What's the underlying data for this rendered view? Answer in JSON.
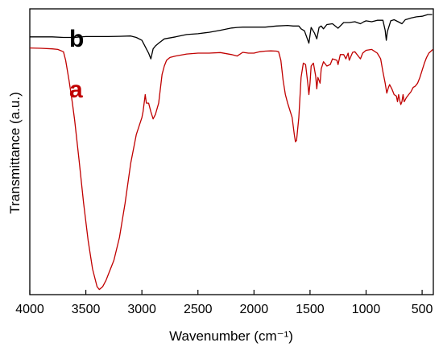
{
  "chart_data": {
    "type": "line",
    "title": "",
    "xlabel": "Wavenumber (cm⁻¹)",
    "ylabel": "Transmittance (a.u.)",
    "xlim": [
      4000,
      400
    ],
    "x_reversed": true,
    "ylim": [
      0,
      100
    ],
    "y_tick_labels_shown": false,
    "grid": false,
    "legend": "inline labels",
    "x_ticks": [
      4000,
      3500,
      3000,
      2500,
      2000,
      1500,
      1000,
      500
    ],
    "x_tick_labels": [
      "4000",
      "3500",
      "3000",
      "2500",
      "2000",
      "1500",
      "1000",
      "500"
    ],
    "series": [
      {
        "name": "b",
        "color": "#000000",
        "points": [
          [
            4000,
            90.2
          ],
          [
            3800,
            90.2
          ],
          [
            3700,
            90.0
          ],
          [
            3600,
            90.0
          ],
          [
            3500,
            90.3
          ],
          [
            3400,
            90.3
          ],
          [
            3300,
            90.3
          ],
          [
            3200,
            90.4
          ],
          [
            3100,
            90.5
          ],
          [
            3050,
            90.0
          ],
          [
            3000,
            89.0
          ],
          [
            2960,
            86.0
          ],
          [
            2940,
            84.5
          ],
          [
            2920,
            82.5
          ],
          [
            2900,
            86.0
          ],
          [
            2880,
            87.0
          ],
          [
            2850,
            88.0
          ],
          [
            2800,
            89.5
          ],
          [
            2700,
            90.2
          ],
          [
            2600,
            91.0
          ],
          [
            2500,
            91.3
          ],
          [
            2400,
            91.8
          ],
          [
            2300,
            92.5
          ],
          [
            2200,
            93.3
          ],
          [
            2150,
            93.5
          ],
          [
            2100,
            93.6
          ],
          [
            2000,
            93.6
          ],
          [
            1900,
            93.6
          ],
          [
            1800,
            94.0
          ],
          [
            1700,
            94.2
          ],
          [
            1650,
            94.0
          ],
          [
            1600,
            94.0
          ],
          [
            1580,
            93.0
          ],
          [
            1550,
            92.3
          ],
          [
            1510,
            88.0
          ],
          [
            1490,
            93.5
          ],
          [
            1460,
            91.5
          ],
          [
            1440,
            89.5
          ],
          [
            1420,
            93.5
          ],
          [
            1400,
            94.0
          ],
          [
            1380,
            93.0
          ],
          [
            1350,
            94.5
          ],
          [
            1300,
            94.8
          ],
          [
            1250,
            93.2
          ],
          [
            1200,
            95.2
          ],
          [
            1150,
            95.2
          ],
          [
            1100,
            95.5
          ],
          [
            1050,
            94.8
          ],
          [
            1020,
            95.5
          ],
          [
            1000,
            95.8
          ],
          [
            950,
            95.5
          ],
          [
            900,
            96.0
          ],
          [
            850,
            96.0
          ],
          [
            830,
            92.5
          ],
          [
            820,
            89.0
          ],
          [
            810,
            92.0
          ],
          [
            780,
            95.8
          ],
          [
            750,
            96.2
          ],
          [
            700,
            95.2
          ],
          [
            680,
            94.8
          ],
          [
            650,
            96.2
          ],
          [
            600,
            96.8
          ],
          [
            550,
            97.2
          ],
          [
            500,
            97.4
          ],
          [
            450,
            98.0
          ],
          [
            410,
            98.0
          ]
        ]
      },
      {
        "name": "a",
        "color": "#c00000",
        "points": [
          [
            4000,
            86.3
          ],
          [
            3900,
            86.2
          ],
          [
            3800,
            86.0
          ],
          [
            3750,
            85.8
          ],
          [
            3700,
            85.0
          ],
          [
            3680,
            82.0
          ],
          [
            3650,
            75.0
          ],
          [
            3620,
            67.0
          ],
          [
            3600,
            61.0
          ],
          [
            3560,
            47.0
          ],
          [
            3520,
            32.0
          ],
          [
            3480,
            19.0
          ],
          [
            3440,
            9.0
          ],
          [
            3400,
            2.8
          ],
          [
            3380,
            1.8
          ],
          [
            3350,
            2.8
          ],
          [
            3320,
            5.0
          ],
          [
            3300,
            7.0
          ],
          [
            3250,
            12.0
          ],
          [
            3200,
            20.0
          ],
          [
            3150,
            32.0
          ],
          [
            3100,
            46.0
          ],
          [
            3050,
            56.0
          ],
          [
            3000,
            62.0
          ],
          [
            2990,
            64.0
          ],
          [
            2970,
            70.0
          ],
          [
            2960,
            67.0
          ],
          [
            2940,
            67.0
          ],
          [
            2920,
            64.0
          ],
          [
            2900,
            61.5
          ],
          [
            2880,
            63.0
          ],
          [
            2850,
            67.0
          ],
          [
            2820,
            77.0
          ],
          [
            2800,
            80.0
          ],
          [
            2780,
            82.0
          ],
          [
            2750,
            83.0
          ],
          [
            2700,
            83.5
          ],
          [
            2600,
            84.2
          ],
          [
            2500,
            84.5
          ],
          [
            2400,
            84.5
          ],
          [
            2300,
            84.7
          ],
          [
            2200,
            84.0
          ],
          [
            2150,
            83.5
          ],
          [
            2100,
            84.8
          ],
          [
            2050,
            84.5
          ],
          [
            2000,
            84.5
          ],
          [
            1950,
            85.0
          ],
          [
            1900,
            85.2
          ],
          [
            1850,
            85.3
          ],
          [
            1800,
            85.2
          ],
          [
            1780,
            85.0
          ],
          [
            1760,
            82.0
          ],
          [
            1740,
            75.0
          ],
          [
            1720,
            70.0
          ],
          [
            1700,
            67.0
          ],
          [
            1680,
            64.5
          ],
          [
            1660,
            62.0
          ],
          [
            1640,
            56.0
          ],
          [
            1630,
            53.5
          ],
          [
            1620,
            54.0
          ],
          [
            1600,
            62.0
          ],
          [
            1580,
            76.0
          ],
          [
            1560,
            81.0
          ],
          [
            1540,
            80.5
          ],
          [
            1520,
            74.0
          ],
          [
            1510,
            70.0
          ],
          [
            1500,
            74.0
          ],
          [
            1490,
            80.0
          ],
          [
            1470,
            81.0
          ],
          [
            1450,
            76.5
          ],
          [
            1440,
            72.0
          ],
          [
            1430,
            76.0
          ],
          [
            1410,
            74.0
          ],
          [
            1400,
            79.0
          ],
          [
            1380,
            81.5
          ],
          [
            1350,
            80.0
          ],
          [
            1320,
            80.5
          ],
          [
            1300,
            82.5
          ],
          [
            1260,
            82.0
          ],
          [
            1250,
            80.5
          ],
          [
            1230,
            84.0
          ],
          [
            1200,
            84.0
          ],
          [
            1180,
            82.5
          ],
          [
            1160,
            84.5
          ],
          [
            1150,
            82.0
          ],
          [
            1120,
            84.8
          ],
          [
            1100,
            85.0
          ],
          [
            1050,
            82.5
          ],
          [
            1030,
            84.5
          ],
          [
            1000,
            85.5
          ],
          [
            950,
            85.8
          ],
          [
            900,
            84.5
          ],
          [
            870,
            82.5
          ],
          [
            850,
            78.0
          ],
          [
            830,
            74.0
          ],
          [
            815,
            70.5
          ],
          [
            800,
            72.5
          ],
          [
            790,
            73.5
          ],
          [
            770,
            72.0
          ],
          [
            750,
            70.0
          ],
          [
            730,
            69.5
          ],
          [
            720,
            67.5
          ],
          [
            710,
            70.0
          ],
          [
            700,
            68.0
          ],
          [
            690,
            66.5
          ],
          [
            680,
            67.5
          ],
          [
            670,
            70.0
          ],
          [
            660,
            67.5
          ],
          [
            640,
            69.0
          ],
          [
            620,
            70.0
          ],
          [
            600,
            71.0
          ],
          [
            580,
            72.5
          ],
          [
            560,
            73.0
          ],
          [
            540,
            74.0
          ],
          [
            520,
            76.0
          ],
          [
            500,
            78.5
          ],
          [
            480,
            81.0
          ],
          [
            460,
            83.0
          ],
          [
            440,
            84.5
          ],
          [
            420,
            85.2
          ],
          [
            405,
            85.8
          ]
        ]
      }
    ]
  }
}
